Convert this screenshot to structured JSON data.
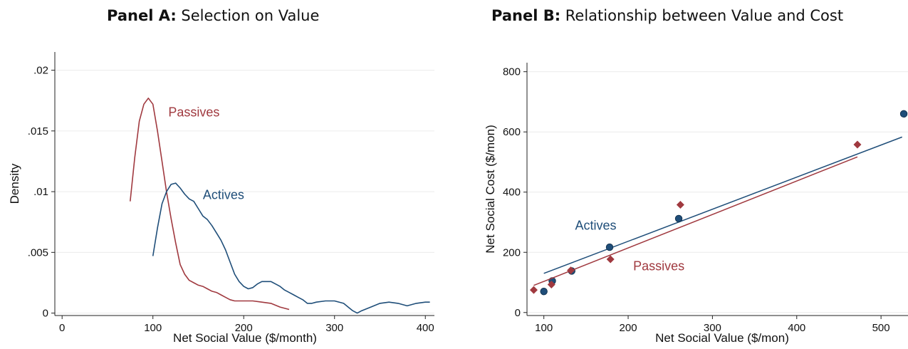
{
  "panels": {
    "a": {
      "title_bold": "Panel A:",
      "title_rest": " Selection on Value"
    },
    "b": {
      "title_bold": "Panel B:",
      "title_rest": " Relationship between Value and Cost"
    }
  },
  "colors": {
    "passives": "#a0393f",
    "actives": "#1f4e79",
    "grid": "#ececec",
    "axis": "#222222"
  },
  "chart_data": [
    {
      "type": "line",
      "xlabel": "Net Social Value ($/month)",
      "ylabel": "Density",
      "xlim": [
        -8,
        410
      ],
      "ylim": [
        -0.0002,
        0.0215
      ],
      "xticks": [
        0,
        100,
        200,
        300,
        400
      ],
      "yticks": [
        0,
        0.005,
        0.01,
        0.015,
        0.02
      ],
      "ytick_labels": [
        "0",
        ".005",
        ".01",
        ".015",
        ".02"
      ],
      "grid": true,
      "series": [
        {
          "name": "Passives",
          "color": "#a0393f",
          "x": [
            75,
            80,
            85,
            90,
            95,
            100,
            105,
            110,
            115,
            120,
            125,
            130,
            135,
            140,
            145,
            150,
            155,
            160,
            165,
            170,
            175,
            180,
            185,
            190,
            200,
            210,
            220,
            230,
            240,
            250
          ],
          "y": [
            0.0092,
            0.0128,
            0.0158,
            0.0172,
            0.0177,
            0.0172,
            0.015,
            0.0125,
            0.01,
            0.0078,
            0.0058,
            0.004,
            0.0032,
            0.0027,
            0.0025,
            0.0023,
            0.0022,
            0.002,
            0.0018,
            0.0017,
            0.0015,
            0.0013,
            0.0011,
            0.001,
            0.001,
            0.001,
            0.0009,
            0.0008,
            0.0005,
            0.0003
          ]
        },
        {
          "name": "Actives",
          "color": "#1f4e79",
          "x": [
            100,
            105,
            110,
            115,
            120,
            125,
            130,
            135,
            140,
            145,
            150,
            155,
            160,
            165,
            170,
            175,
            180,
            185,
            190,
            195,
            200,
            205,
            210,
            215,
            220,
            225,
            230,
            235,
            240,
            245,
            250,
            255,
            260,
            265,
            270,
            275,
            280,
            290,
            300,
            310,
            315,
            320,
            325,
            330,
            340,
            350,
            360,
            370,
            380,
            390,
            400,
            405
          ],
          "y": [
            0.0047,
            0.007,
            0.009,
            0.01,
            0.0106,
            0.0107,
            0.0103,
            0.0098,
            0.0094,
            0.0092,
            0.0086,
            0.008,
            0.0077,
            0.0072,
            0.0066,
            0.006,
            0.0052,
            0.0042,
            0.0032,
            0.0026,
            0.0022,
            0.002,
            0.0021,
            0.0024,
            0.0026,
            0.0026,
            0.0026,
            0.0024,
            0.0022,
            0.0019,
            0.0017,
            0.0015,
            0.0013,
            0.0011,
            0.0008,
            0.0008,
            0.0009,
            0.001,
            0.001,
            0.0008,
            0.0005,
            0.0002,
            0.0,
            0.0002,
            0.0005,
            0.0008,
            0.0009,
            0.0008,
            0.0006,
            0.0008,
            0.0009,
            0.0009
          ]
        }
      ],
      "annotations": [
        {
          "text": "Passives",
          "x": 117,
          "y": 0.0162,
          "series": "Passives"
        },
        {
          "text": "Actives",
          "x": 155,
          "y": 0.0094,
          "series": "Actives"
        }
      ]
    },
    {
      "type": "scatter",
      "xlabel": "Net Social Value ($/mon)",
      "ylabel": "Net Social Cost ($/mon)",
      "xlim": [
        80,
        532
      ],
      "ylim": [
        -10,
        830
      ],
      "xticks": [
        100,
        200,
        300,
        400,
        500
      ],
      "yticks": [
        0,
        200,
        400,
        600,
        800
      ],
      "grid": true,
      "series": [
        {
          "name": "Actives",
          "color": "#1f4e79",
          "marker": "circle",
          "points": [
            [
              100,
              70
            ],
            [
              110,
              105
            ],
            [
              133,
              138
            ],
            [
              178,
              217
            ],
            [
              260,
              312
            ],
            [
              527,
              660
            ]
          ],
          "fit": [
            [
              100,
              130
            ],
            [
              525,
              583
            ]
          ]
        },
        {
          "name": "Passives",
          "color": "#a0393f",
          "marker": "diamond",
          "points": [
            [
              88,
              75
            ],
            [
              109,
              93
            ],
            [
              132,
              140
            ],
            [
              179,
              177
            ],
            [
              262,
              358
            ],
            [
              472,
              558
            ]
          ],
          "fit": [
            [
              88,
              90
            ],
            [
              472,
              517
            ]
          ]
        }
      ],
      "annotations": [
        {
          "text": "Actives",
          "x": 137,
          "y": 275,
          "series": "Actives"
        },
        {
          "text": "Passives",
          "x": 206,
          "y": 140,
          "series": "Passives"
        }
      ]
    }
  ]
}
